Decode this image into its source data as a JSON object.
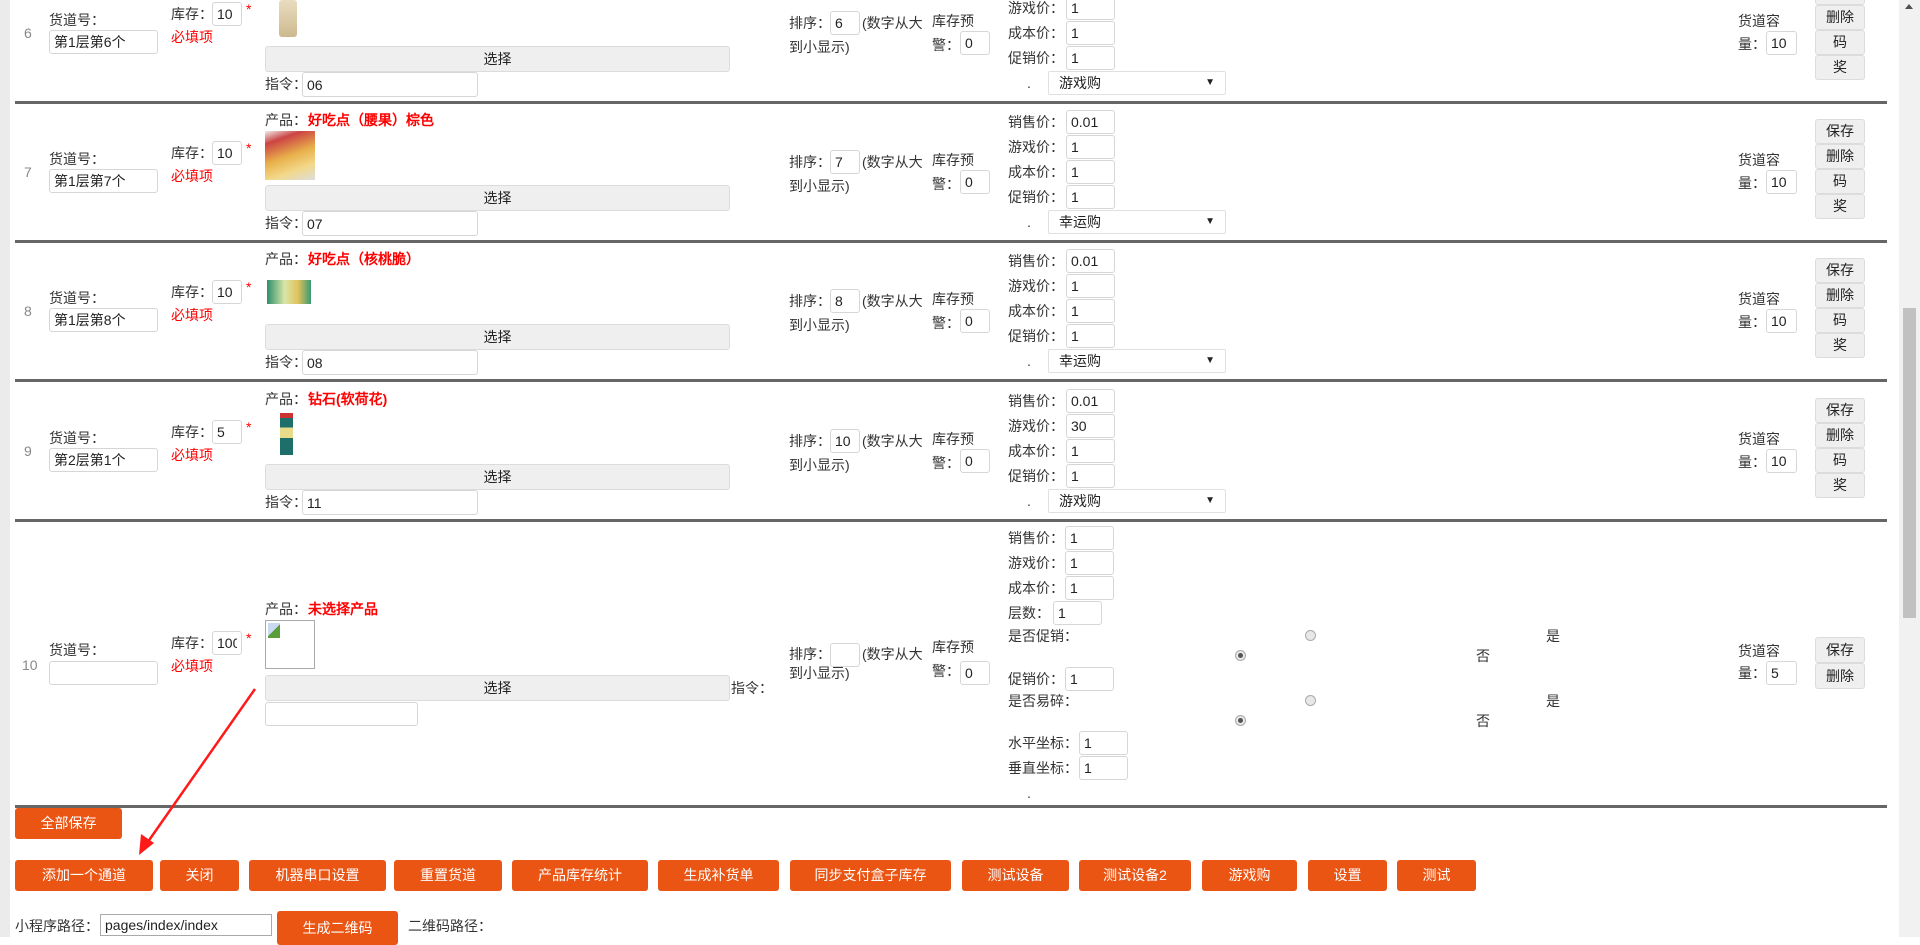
{
  "labels": {
    "lane": "货道号：",
    "stock": "库存：",
    "asterisk": "*",
    "required": "必填项",
    "product": "产品：",
    "select_button": "选择",
    "command": "指令：",
    "sort": "排序：",
    "sort_hint_1": "(数字从大",
    "sort_hint_2": "到小显示)",
    "warn_1": "库存预",
    "warn_2": "警：",
    "dot": ".",
    "capacity_1": "货道容",
    "capacity_2": "量："
  },
  "rows": [
    {
      "index": "6",
      "lane_value": "第1层第6个",
      "stock": "10",
      "product_name": null,
      "product_image": "product-bottle-image",
      "command": "06",
      "sort": "6",
      "warn": "0",
      "prices": [
        null,
        {
          "label": "游戏价：",
          "value": "1"
        },
        {
          "label": "成本价：",
          "value": "1"
        },
        {
          "label": "促销价：",
          "value": "1"
        }
      ],
      "mode": "游戏购",
      "capacity": "10",
      "actions": [
        null,
        "删除",
        "码",
        "奖"
      ]
    },
    {
      "index": "7",
      "lane_value": "第1层第7个",
      "stock": "10",
      "product_name": "好吃点（腰果）棕色",
      "product_image": "product-snack-bag-image",
      "command": "07",
      "sort": "7",
      "warn": "0",
      "prices": [
        {
          "label": "销售价：",
          "value": "0.01"
        },
        {
          "label": "游戏价：",
          "value": "1"
        },
        {
          "label": "成本价：",
          "value": "1"
        },
        {
          "label": "促销价：",
          "value": "1"
        }
      ],
      "mode": "幸运购",
      "capacity": "10",
      "actions": [
        "保存",
        "删除",
        "码",
        "奖"
      ]
    },
    {
      "index": "8",
      "lane_value": "第1层第8个",
      "stock": "10",
      "product_name": "好吃点（核桃脆）",
      "product_image": "product-cracker-pack-image",
      "command": "08",
      "sort": "8",
      "warn": "0",
      "prices": [
        {
          "label": "销售价：",
          "value": "0.01"
        },
        {
          "label": "游戏价：",
          "value": "1"
        },
        {
          "label": "成本价：",
          "value": "1"
        },
        {
          "label": "促销价：",
          "value": "1"
        }
      ],
      "mode": "幸运购",
      "capacity": "10",
      "actions": [
        "保存",
        "删除",
        "码",
        "奖"
      ]
    },
    {
      "index": "9",
      "lane_value": "第2层第1个",
      "stock": "5",
      "product_name": "钻石(软荷花)",
      "product_image": "product-cigarette-box-image",
      "command": "11",
      "sort": "10",
      "warn": "0",
      "prices": [
        {
          "label": "销售价：",
          "value": "0.01"
        },
        {
          "label": "游戏价：",
          "value": "30"
        },
        {
          "label": "成本价：",
          "value": "1"
        },
        {
          "label": "促销价：",
          "value": "1"
        }
      ],
      "mode": "游戏购",
      "capacity": "10",
      "actions": [
        "保存",
        "删除",
        "码",
        "奖"
      ]
    }
  ],
  "new_row": {
    "index": "10",
    "lane_value": "",
    "stock": "100",
    "product_name": "未选择产品",
    "product_image": "broken-image-icon",
    "command": "",
    "sort": "",
    "warn": "0",
    "sale_price": {
      "label": "销售价：",
      "value": "1"
    },
    "game_price": {
      "label": "游戏价：",
      "value": "1"
    },
    "cost_price": {
      "label": "成本价：",
      "value": "1"
    },
    "layers": {
      "label": "层数：",
      "value": "1"
    },
    "is_promo": {
      "label": "是否促销：",
      "yes": "是",
      "no": "否",
      "selected": "否"
    },
    "promo_price": {
      "label": "促销价：",
      "value": "1"
    },
    "is_fragile": {
      "label": "是否易碎：",
      "yes": "是",
      "no": "否",
      "selected": "否"
    },
    "h_coord": {
      "label": "水平坐标：",
      "value": "1"
    },
    "v_coord": {
      "label": "垂直坐标：",
      "value": "1"
    },
    "capacity": "5",
    "actions": [
      "保存",
      "删除"
    ]
  },
  "save_all": "全部保存",
  "toolbar": [
    "添加一个通道",
    "关闭",
    "机器串口设置",
    "重置货道",
    "产品库存统计",
    "生成补货单",
    "同步支付盒子库存",
    "测试设备",
    "测试设备2",
    "游戏购",
    "设置",
    "测试"
  ],
  "footer": {
    "path_label": "小程序路径：",
    "path_value": "pages/index/index",
    "generate_qr": "生成二维码",
    "qr_path_label": "二维码路径："
  },
  "colors": {
    "accent": "#ea5514",
    "required": "#ff0000",
    "divider": "#666666",
    "annotation_arrow": "#ff1a1a"
  }
}
